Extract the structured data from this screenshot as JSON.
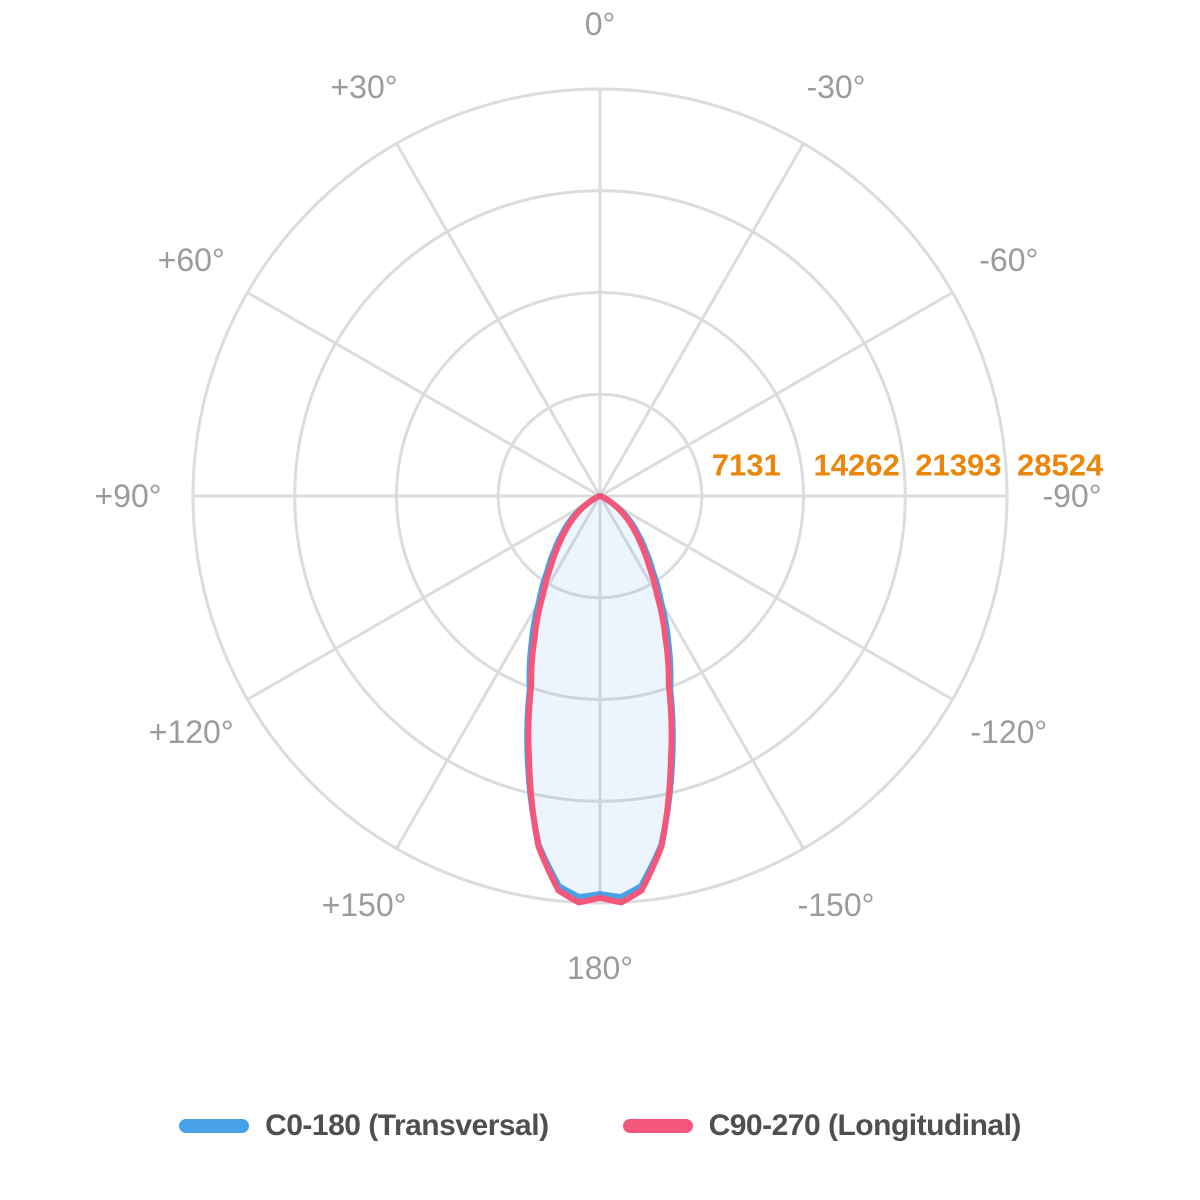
{
  "chart_data": {
    "type": "line",
    "coordinate_system": "polar",
    "description": "Photometric polar intensity diagram, 0 degrees at bottom, 180 degrees at top, negative angles left, positive angles right",
    "grid": true,
    "rings": 4,
    "spoke_step_deg": 30,
    "radial_max": 28524,
    "radial_ticks": [
      {
        "value": 7131,
        "label": "7131"
      },
      {
        "value": 14262,
        "label": "14262"
      },
      {
        "value": 21393,
        "label": "21393"
      },
      {
        "value": 28524,
        "label": "28524"
      }
    ],
    "angle_labels": [
      {
        "deg": 180,
        "label": "180°"
      },
      {
        "deg": -150,
        "label": "-150°"
      },
      {
        "deg": 150,
        "label": "+150°"
      },
      {
        "deg": -120,
        "label": "-120°"
      },
      {
        "deg": 120,
        "label": "+120°"
      },
      {
        "deg": -90,
        "label": "-90°"
      },
      {
        "deg": 90,
        "label": "+90°"
      },
      {
        "deg": -60,
        "label": "-60°"
      },
      {
        "deg": 60,
        "label": "+60°"
      },
      {
        "deg": -30,
        "label": "-30°"
      },
      {
        "deg": 30,
        "label": "+30°"
      },
      {
        "deg": 0,
        "label": "0°"
      }
    ],
    "series": [
      {
        "name": "C0-180 (Transversal)",
        "color": "#47a1e8",
        "fill_color": "rgba(71,161,232,0.10)",
        "line_width": 6,
        "symmetric": true,
        "gamma_deg": [
          0,
          3,
          6,
          10,
          15,
          20,
          25,
          30,
          35,
          40,
          45,
          50,
          55,
          60,
          65,
          70,
          75,
          90
        ],
        "intensity_cd": [
          27900,
          28150,
          27500,
          24800,
          19500,
          14400,
          11350,
          8550,
          6450,
          4950,
          3750,
          2780,
          1850,
          930,
          400,
          140,
          0,
          0
        ]
      },
      {
        "name": "C90-270 (Longitudinal)",
        "color": "#f5577b",
        "fill_color": "none",
        "line_width": 6,
        "symmetric": true,
        "gamma_deg": [
          0,
          3,
          6,
          10,
          15,
          20,
          25,
          30,
          35,
          40,
          45,
          50,
          55,
          60,
          65,
          70,
          75,
          90
        ],
        "intensity_cd": [
          28150,
          28524,
          27800,
          24900,
          19200,
          14100,
          10800,
          8000,
          6000,
          4550,
          3420,
          2500,
          1650,
          880,
          370,
          120,
          0,
          0
        ]
      }
    ],
    "colors": {
      "grid": "#dcdcdc",
      "angle_label": "#9b9b9b",
      "radial_tick": "#ec860b"
    },
    "legend_position": "bottom"
  },
  "legend": {
    "items": [
      {
        "label": "C0-180 (Transversal)",
        "color": "#47a1e8"
      },
      {
        "label": "C90-270 (Longitudinal)",
        "color": "#f5577b"
      }
    ]
  }
}
